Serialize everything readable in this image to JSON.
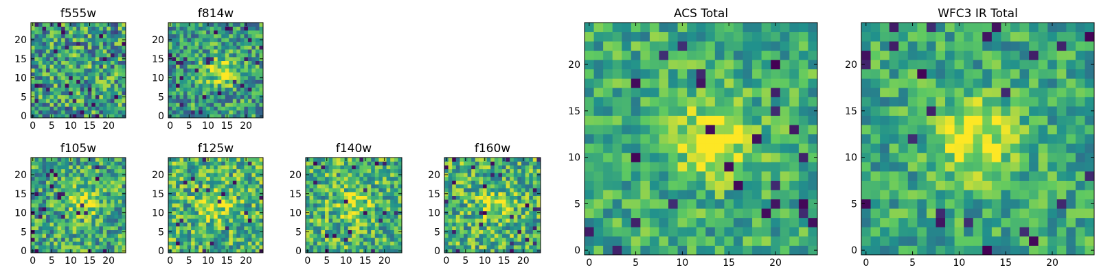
{
  "chart_data": {
    "type": "heatmap",
    "colormap": "viridis",
    "panels": [
      {
        "id": "f555w",
        "title": "f555w",
        "grid": [
          25,
          25
        ],
        "seed": 11,
        "bright": 0.55,
        "noise": 0.35,
        "peak": 0.05,
        "center": [
          12,
          12
        ],
        "xticks": [
          "0",
          "5",
          "10",
          "15",
          "20"
        ],
        "yticks": [
          "0",
          "5",
          "10",
          "15",
          "20"
        ]
      },
      {
        "id": "f814w",
        "title": "f814w",
        "grid": [
          25,
          25
        ],
        "seed": 23,
        "bright": 0.55,
        "noise": 0.3,
        "peak": 0.35,
        "center": [
          13,
          12
        ],
        "xticks": [
          "0",
          "5",
          "10",
          "15",
          "20"
        ],
        "yticks": [
          "0",
          "5",
          "10",
          "15",
          "20"
        ]
      },
      {
        "id": "f105w",
        "title": "f105w",
        "grid": [
          25,
          25
        ],
        "seed": 37,
        "bright": 0.6,
        "noise": 0.3,
        "peak": 0.3,
        "center": [
          13,
          13
        ],
        "xticks": [
          "0",
          "5",
          "10",
          "15",
          "20"
        ],
        "yticks": [
          "0",
          "5",
          "10",
          "15",
          "20"
        ]
      },
      {
        "id": "f125w",
        "title": "f125w",
        "grid": [
          25,
          25
        ],
        "seed": 41,
        "bright": 0.65,
        "noise": 0.3,
        "peak": 0.25,
        "center": [
          12,
          12
        ],
        "xticks": [
          "0",
          "5",
          "10",
          "15",
          "20"
        ],
        "yticks": [
          "0",
          "5",
          "10",
          "15",
          "20"
        ]
      },
      {
        "id": "f140w",
        "title": "f140w",
        "grid": [
          25,
          25
        ],
        "seed": 53,
        "bright": 0.65,
        "noise": 0.3,
        "peak": 0.25,
        "center": [
          12,
          12
        ],
        "xticks": [
          "0",
          "5",
          "10",
          "15",
          "20"
        ],
        "yticks": [
          "0",
          "5",
          "10",
          "15",
          "20"
        ]
      },
      {
        "id": "f160w",
        "title": "f160w",
        "grid": [
          25,
          25
        ],
        "seed": 67,
        "bright": 0.65,
        "noise": 0.3,
        "peak": 0.25,
        "center": [
          12,
          12
        ],
        "xticks": [
          "0",
          "5",
          "10",
          "15",
          "20"
        ],
        "yticks": [
          "0",
          "5",
          "10",
          "15",
          "20"
        ]
      },
      {
        "id": "acs",
        "title": "ACS Total",
        "grid": [
          25,
          25
        ],
        "seed": 79,
        "bright": 0.62,
        "noise": 0.22,
        "peak": 0.35,
        "center": [
          13,
          12
        ],
        "xticks": [
          "0",
          "5",
          "10",
          "15",
          "20"
        ],
        "yticks": [
          "0",
          "5",
          "10",
          "15",
          "20"
        ]
      },
      {
        "id": "wfc3",
        "title": "WFC3 IR Total",
        "grid": [
          25,
          25
        ],
        "seed": 97,
        "bright": 0.6,
        "noise": 0.22,
        "peak": 0.4,
        "center": [
          12,
          12
        ],
        "xticks": [
          "0",
          "5",
          "10",
          "15",
          "20"
        ],
        "yticks": [
          "0",
          "5",
          "10",
          "15",
          "20"
        ]
      }
    ]
  },
  "colors": {
    "background": "#ffffff",
    "axis": "#000000",
    "viridis": [
      "#440154",
      "#3b528b",
      "#21918c",
      "#5ec962",
      "#fde725"
    ]
  }
}
